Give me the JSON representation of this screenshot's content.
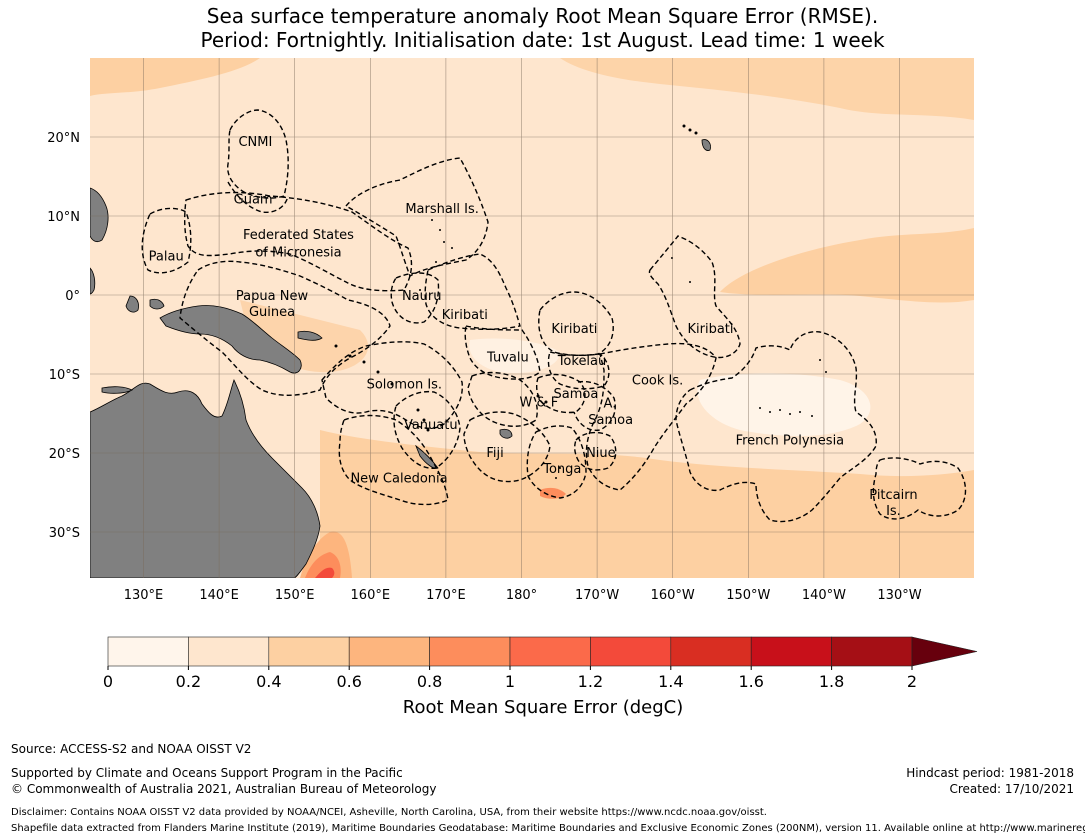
{
  "title": {
    "line1": "Sea surface temperature anomaly Root Mean Square Error (RMSE).",
    "line2": "Period: Fortnightly. Initialisation date: 1st August. Lead time: 1 week"
  },
  "map": {
    "lat_ticks": [
      {
        "value": 20,
        "label": "20°N"
      },
      {
        "value": 10,
        "label": "10°N"
      },
      {
        "value": 0,
        "label": "0°"
      },
      {
        "value": -10,
        "label": "10°S"
      },
      {
        "value": -20,
        "label": "20°S"
      },
      {
        "value": -30,
        "label": "30°S"
      }
    ],
    "lon_ticks": [
      {
        "value": 130,
        "label": "130°E"
      },
      {
        "value": 140,
        "label": "140°E"
      },
      {
        "value": 150,
        "label": "150°E"
      },
      {
        "value": 160,
        "label": "160°E"
      },
      {
        "value": 170,
        "label": "170°E"
      },
      {
        "value": 180,
        "label": "180°"
      },
      {
        "value": 190,
        "label": "170°W"
      },
      {
        "value": 200,
        "label": "160°W"
      },
      {
        "value": 210,
        "label": "150°W"
      },
      {
        "value": 220,
        "label": "140°W"
      },
      {
        "value": 230,
        "label": "130°W"
      }
    ],
    "regions": [
      {
        "name": "CNMI",
        "lon": 144.8,
        "lat": 19.5
      },
      {
        "name": "Guam",
        "lon": 144.5,
        "lat": 12.2
      },
      {
        "name": "Marshall Is.",
        "lon": 169.5,
        "lat": 11.0
      },
      {
        "name": "Federated States",
        "lon": 150.5,
        "lat": 7.7
      },
      {
        "name": "of Micronesia",
        "lon": 150.5,
        "lat": 5.5
      },
      {
        "name": "Palau",
        "lon": 133.0,
        "lat": 5.0
      },
      {
        "name": "Papua New",
        "lon": 147.0,
        "lat": 0.0
      },
      {
        "name": "Guinea",
        "lon": 147.0,
        "lat": -2.0
      },
      {
        "name": "Nauru",
        "lon": 166.8,
        "lat": 0.0
      },
      {
        "name": "Kiribati",
        "lon": 172.5,
        "lat": -2.4
      },
      {
        "name": "Kiribati",
        "lon": 187.0,
        "lat": -4.2
      },
      {
        "name": "Kiribati",
        "lon": 205.0,
        "lat": -4.2
      },
      {
        "name": "Tuvalu",
        "lon": 178.2,
        "lat": -7.8
      },
      {
        "name": "Tokelau",
        "lon": 188.0,
        "lat": -8.2
      },
      {
        "name": "Cook Is.",
        "lon": 198.0,
        "lat": -10.7
      },
      {
        "name": "Solomon Is.",
        "lon": 164.5,
        "lat": -11.2
      },
      {
        "name": "Samoa",
        "lon": 187.2,
        "lat": -12.4
      },
      {
        "name": "W & F",
        "lon": 182.3,
        "lat": -13.5
      },
      {
        "name": "A.",
        "lon": 191.7,
        "lat": -13.6
      },
      {
        "name": "Samoa",
        "lon": 191.8,
        "lat": -15.7
      },
      {
        "name": "Vanuatu",
        "lon": 168.0,
        "lat": -16.3
      },
      {
        "name": "French Polynesia",
        "lon": 215.5,
        "lat": -18.3
      },
      {
        "name": "Fiji",
        "lon": 176.5,
        "lat": -19.9
      },
      {
        "name": "Niue",
        "lon": 190.5,
        "lat": -19.9
      },
      {
        "name": "Tonga",
        "lon": 185.4,
        "lat": -21.9
      },
      {
        "name": "New Caledonia",
        "lon": 163.8,
        "lat": -23.1
      },
      {
        "name": "Pitcairn",
        "lon": 229.2,
        "lat": -25.2
      },
      {
        "name": "Is.",
        "lon": 229.2,
        "lat": -27.2
      }
    ],
    "land_color": "#808080",
    "grid_color": "#7a6a5a"
  },
  "colorbar": {
    "label": "Root Mean Square Error (degC)",
    "ticks": [
      "0",
      "0.2",
      "0.4",
      "0.6",
      "0.8",
      "1",
      "1.2",
      "1.4",
      "1.6",
      "1.8",
      "2"
    ],
    "colors": [
      "#fff5eb",
      "#fee6ce",
      "#fdd0a2",
      "#fdb57e",
      "#fd8d5c",
      "#fb6a4a",
      "#f34a3a",
      "#d92e22",
      "#c8101a",
      "#a50f15"
    ],
    "extend_color": "#67000d"
  },
  "footer": {
    "source": "Source: ACCESS-S2 and NOAA OISST V2",
    "supported": "Supported by Climate and Oceans Support Program in the Pacific",
    "copyright": "© Commonwealth of Australia 2021, Australian Bureau of Meteorology",
    "hindcast": "Hindcast period: 1981-2018",
    "created": "Created: 17/10/2021",
    "disclaimer": "Disclaimer: Contains NOAA OISST V2 data provided by NOAA/NCEI, Asheville, North Carolina, USA, from their website https://www.ncdc.noaa.gov/oisst.",
    "shapefile": "Shapefile data extracted from Flanders Marine Institute (2019), Maritime Boundaries Geodatabase: Maritime Boundaries and Exclusive Economic Zones (200NM), version 11. Available online at http://www.marineregions.org/."
  }
}
